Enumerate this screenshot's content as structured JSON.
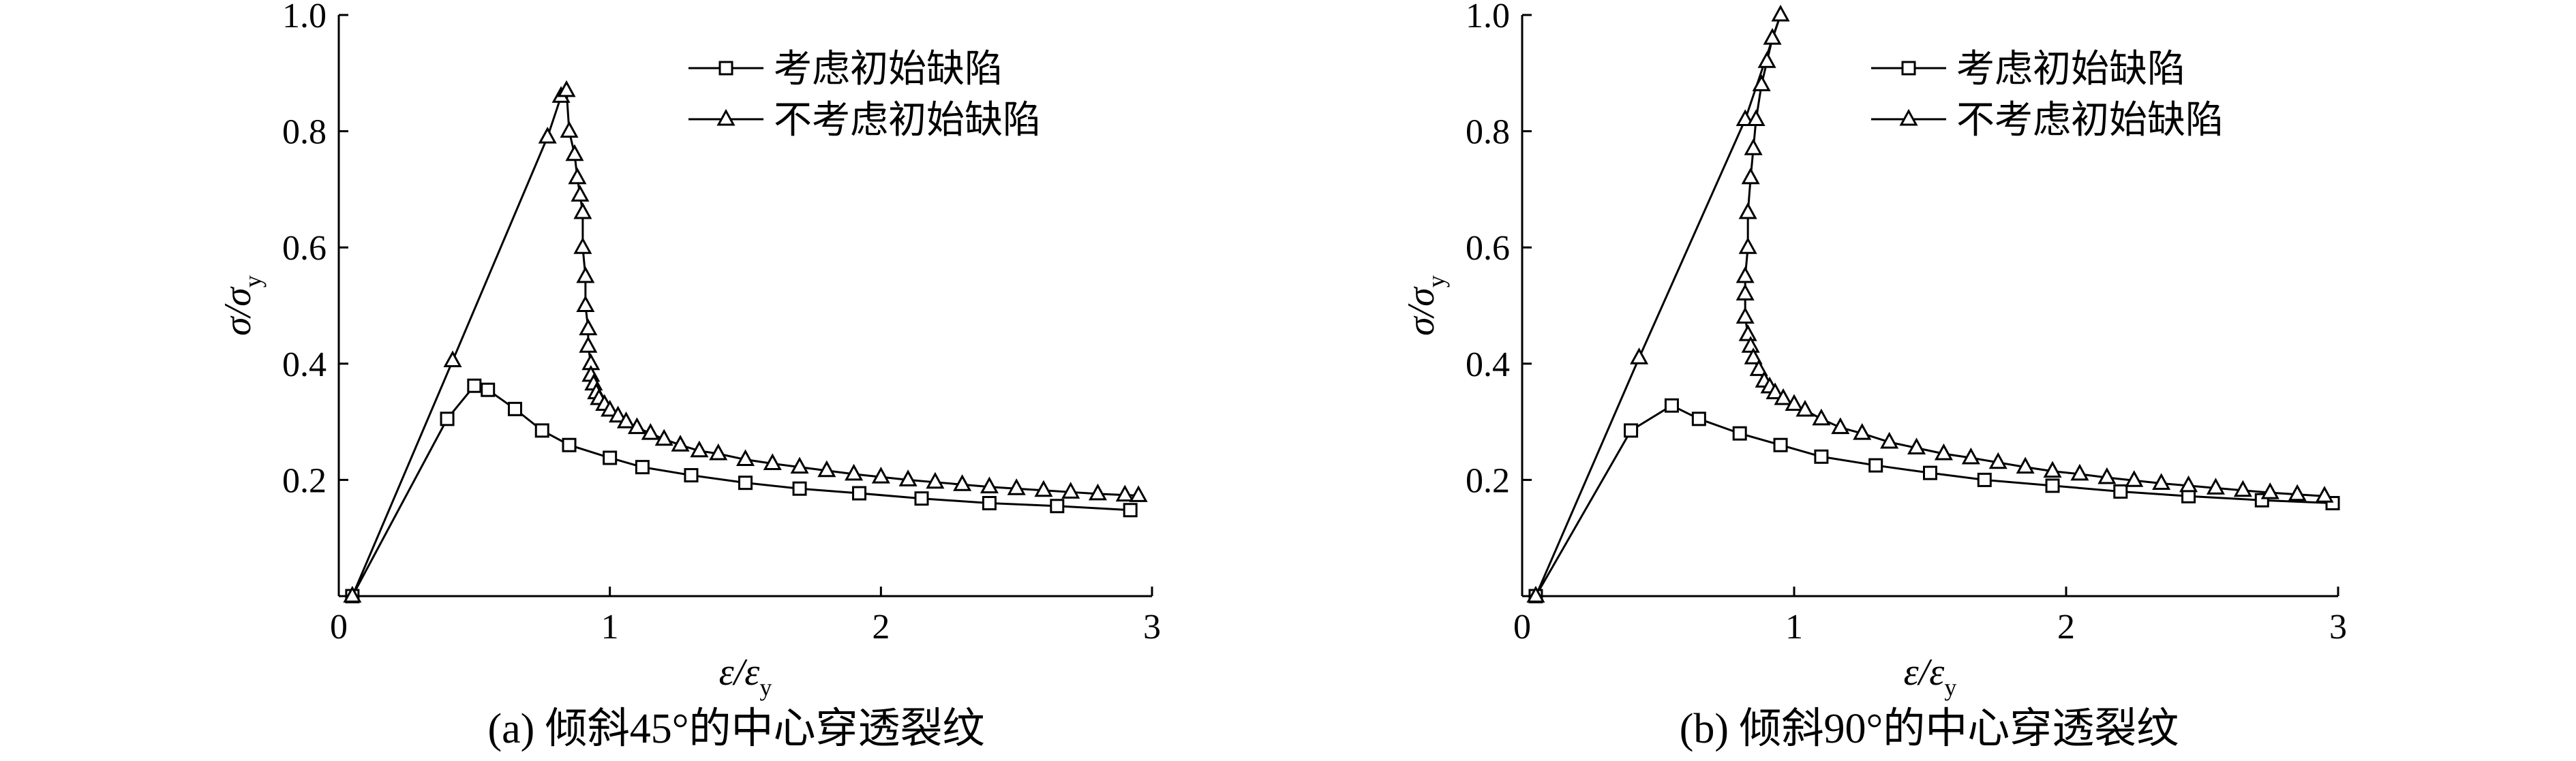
{
  "chart_data": [
    {
      "type": "line",
      "caption": "(a) 倾斜45°的中心穿透裂纹",
      "xlabel": {
        "main": "ε/ε",
        "sub": "y"
      },
      "ylabel": {
        "main": "σ/σ",
        "sub": "y"
      },
      "xlim": [
        0,
        3
      ],
      "ylim": [
        0,
        1.0
      ],
      "xticks": [
        {
          "value": 0,
          "label": "0"
        },
        {
          "value": 1,
          "label": "1"
        },
        {
          "value": 2,
          "label": "2"
        },
        {
          "value": 3,
          "label": "3"
        }
      ],
      "yticks": [
        {
          "value": 0.2,
          "label": "0.2"
        },
        {
          "value": 0.4,
          "label": "0.4"
        },
        {
          "value": 0.6,
          "label": "0.6"
        },
        {
          "value": 0.8,
          "label": "0.8"
        },
        {
          "value": 1.0,
          "label": "1.0"
        }
      ],
      "legend_position": "top-right",
      "series": [
        {
          "name": "考虑初始缺陷",
          "marker": "square",
          "x": [
            0.05,
            0.4,
            0.5,
            0.55,
            0.65,
            0.75,
            0.85,
            1.0,
            1.12,
            1.3,
            1.5,
            1.7,
            1.92,
            2.15,
            2.4,
            2.65,
            2.92
          ],
          "y": [
            0.0,
            0.305,
            0.362,
            0.355,
            0.322,
            0.285,
            0.26,
            0.238,
            0.222,
            0.208,
            0.195,
            0.185,
            0.177,
            0.168,
            0.16,
            0.155,
            0.148
          ]
        },
        {
          "name": "不考虑初始缺陷",
          "marker": "triangle",
          "x": [
            0.05,
            0.42,
            0.77,
            0.82,
            0.84,
            0.85,
            0.87,
            0.88,
            0.89,
            0.9,
            0.9,
            0.91,
            0.91,
            0.92,
            0.92,
            0.93,
            0.93,
            0.94,
            0.95,
            0.96,
            0.98,
            1.0,
            1.03,
            1.06,
            1.1,
            1.15,
            1.2,
            1.26,
            1.33,
            1.4,
            1.5,
            1.6,
            1.7,
            1.8,
            1.9,
            2.0,
            2.1,
            2.2,
            2.3,
            2.4,
            2.5,
            2.6,
            2.7,
            2.8,
            2.9,
            2.95
          ],
          "y": [
            0.0,
            0.405,
            0.79,
            0.86,
            0.87,
            0.8,
            0.76,
            0.72,
            0.69,
            0.66,
            0.6,
            0.55,
            0.5,
            0.46,
            0.43,
            0.4,
            0.38,
            0.365,
            0.35,
            0.34,
            0.33,
            0.32,
            0.31,
            0.3,
            0.29,
            0.28,
            0.27,
            0.26,
            0.25,
            0.245,
            0.235,
            0.228,
            0.222,
            0.216,
            0.21,
            0.205,
            0.2,
            0.196,
            0.192,
            0.188,
            0.185,
            0.182,
            0.179,
            0.176,
            0.174,
            0.173
          ]
        }
      ]
    },
    {
      "type": "line",
      "caption": "(b) 倾斜90°的中心穿透裂纹",
      "xlabel": {
        "main": "ε/ε",
        "sub": "y"
      },
      "ylabel": {
        "main": "σ/σ",
        "sub": "y"
      },
      "xlim": [
        0,
        3
      ],
      "ylim": [
        0,
        1.0
      ],
      "xticks": [
        {
          "value": 0,
          "label": "0"
        },
        {
          "value": 1,
          "label": "1"
        },
        {
          "value": 2,
          "label": "2"
        },
        {
          "value": 3,
          "label": "3"
        }
      ],
      "yticks": [
        {
          "value": 0.2,
          "label": "0.2"
        },
        {
          "value": 0.4,
          "label": "0.4"
        },
        {
          "value": 0.6,
          "label": "0.6"
        },
        {
          "value": 0.8,
          "label": "0.8"
        },
        {
          "value": 1.0,
          "label": "1.0"
        }
      ],
      "legend_position": "top-right",
      "series": [
        {
          "name": "考虑初始缺陷",
          "marker": "square",
          "x": [
            0.05,
            0.4,
            0.55,
            0.65,
            0.8,
            0.95,
            1.1,
            1.3,
            1.5,
            1.7,
            1.95,
            2.2,
            2.45,
            2.72,
            2.98
          ],
          "y": [
            0.0,
            0.285,
            0.328,
            0.305,
            0.28,
            0.26,
            0.24,
            0.225,
            0.212,
            0.2,
            0.19,
            0.18,
            0.172,
            0.165,
            0.16
          ]
        },
        {
          "name": "不考虑初始缺陷",
          "marker": "triangle",
          "x": [
            0.05,
            0.43,
            0.82,
            0.95,
            0.92,
            0.9,
            0.88,
            0.86,
            0.85,
            0.84,
            0.83,
            0.83,
            0.82,
            0.82,
            0.82,
            0.83,
            0.84,
            0.85,
            0.87,
            0.89,
            0.91,
            0.93,
            0.96,
            1.0,
            1.04,
            1.1,
            1.17,
            1.25,
            1.35,
            1.45,
            1.55,
            1.65,
            1.75,
            1.85,
            1.95,
            2.05,
            2.15,
            2.25,
            2.35,
            2.45,
            2.55,
            2.65,
            2.75,
            2.85,
            2.95
          ],
          "y": [
            0.0,
            0.41,
            0.82,
            1.0,
            0.96,
            0.92,
            0.88,
            0.82,
            0.77,
            0.72,
            0.66,
            0.6,
            0.55,
            0.52,
            0.48,
            0.45,
            0.43,
            0.41,
            0.39,
            0.37,
            0.36,
            0.35,
            0.34,
            0.33,
            0.32,
            0.305,
            0.29,
            0.28,
            0.265,
            0.255,
            0.245,
            0.238,
            0.23,
            0.222,
            0.215,
            0.21,
            0.204,
            0.199,
            0.194,
            0.19,
            0.186,
            0.182,
            0.178,
            0.175,
            0.172
          ]
        }
      ]
    }
  ]
}
